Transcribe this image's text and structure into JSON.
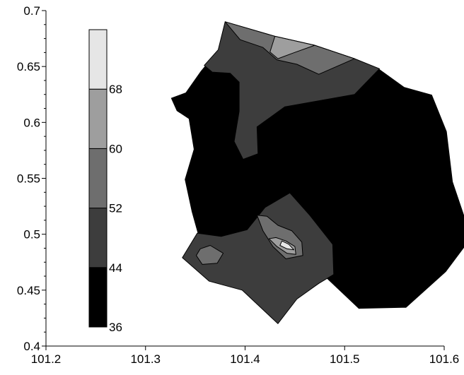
{
  "chart_data": {
    "type": "heatmap",
    "subtype": "filled-contour map",
    "title": "",
    "xlabel": "",
    "ylabel": "",
    "xlim": [
      101.2,
      101.6
    ],
    "ylim": [
      0.4,
      0.7
    ],
    "x_ticks": [
      "101.2",
      "101.3",
      "101.4",
      "101.5",
      "101.6"
    ],
    "y_ticks": [
      "0.4",
      "0.45",
      "0.5",
      "0.55",
      "0.6",
      "0.65",
      "0.7"
    ],
    "grid": false,
    "legend": {
      "placement": "left, inside plot",
      "type": "colorbar",
      "levels": [
        "36",
        "44",
        "52",
        "60",
        "68"
      ],
      "bands": [
        {
          "from": 36,
          "to": 44,
          "color": "#000000"
        },
        {
          "from": 44,
          "to": 52,
          "color": "#3d3d3d"
        },
        {
          "from": 52,
          "to": 60,
          "color": "#6e6e6e"
        },
        {
          "from": 60,
          "to": 68,
          "color": "#9e9e9e"
        },
        {
          "from": 68,
          "to": 76,
          "color": "#e6e6e6"
        }
      ]
    },
    "regions": [
      {
        "name": "main-outline",
        "band": 1,
        "outline": [
          [
            101.38,
            0.69
          ],
          [
            101.43,
            0.677
          ],
          [
            101.47,
            0.669
          ],
          [
            101.51,
            0.657
          ],
          [
            101.535,
            0.648
          ],
          [
            101.56,
            0.632
          ],
          [
            101.588,
            0.625
          ],
          [
            101.603,
            0.592
          ],
          [
            101.609,
            0.547
          ],
          [
            101.628,
            0.497
          ],
          [
            101.602,
            0.466
          ],
          [
            101.562,
            0.434
          ],
          [
            101.514,
            0.433
          ],
          [
            101.482,
            0.46
          ],
          [
            101.452,
            0.442
          ],
          [
            101.433,
            0.42
          ],
          [
            101.397,
            0.45
          ],
          [
            101.364,
            0.458
          ],
          [
            101.337,
            0.479
          ],
          [
            101.352,
            0.501
          ],
          [
            101.346,
            0.52
          ],
          [
            101.339,
            0.549
          ],
          [
            101.348,
            0.576
          ],
          [
            101.343,
            0.603
          ],
          [
            101.331,
            0.61
          ],
          [
            101.325,
            0.622
          ],
          [
            101.34,
            0.627
          ],
          [
            101.355,
            0.646
          ],
          [
            101.373,
            0.665
          ]
        ]
      },
      {
        "name": "north-band",
        "band": 2,
        "outline": [
          [
            101.38,
            0.69
          ],
          [
            101.43,
            0.677
          ],
          [
            101.47,
            0.669
          ],
          [
            101.51,
            0.657
          ],
          [
            101.535,
            0.648
          ],
          [
            101.51,
            0.625
          ],
          [
            101.44,
            0.614
          ],
          [
            101.412,
            0.596
          ],
          [
            101.413,
            0.572
          ],
          [
            101.398,
            0.567
          ],
          [
            101.389,
            0.583
          ],
          [
            101.394,
            0.61
          ],
          [
            101.394,
            0.636
          ],
          [
            101.385,
            0.644
          ],
          [
            101.367,
            0.645
          ],
          [
            101.359,
            0.651
          ],
          [
            101.373,
            0.665
          ]
        ]
      },
      {
        "name": "north-top",
        "band": 3,
        "outline": [
          [
            101.38,
            0.69
          ],
          [
            101.43,
            0.677
          ],
          [
            101.47,
            0.669
          ],
          [
            101.51,
            0.657
          ],
          [
            101.474,
            0.643
          ],
          [
            101.452,
            0.652
          ],
          [
            101.432,
            0.656
          ],
          [
            101.418,
            0.667
          ],
          [
            101.395,
            0.674
          ]
        ]
      },
      {
        "name": "north-peak",
        "band": 4,
        "outline": [
          [
            101.43,
            0.677
          ],
          [
            101.47,
            0.669
          ],
          [
            101.448,
            0.662
          ],
          [
            101.433,
            0.657
          ],
          [
            101.425,
            0.663
          ]
        ]
      },
      {
        "name": "south-band",
        "band": 2,
        "outline": [
          [
            101.337,
            0.479
          ],
          [
            101.352,
            0.501
          ],
          [
            101.376,
            0.498
          ],
          [
            101.402,
            0.504
          ],
          [
            101.42,
            0.524
          ],
          [
            101.445,
            0.537
          ],
          [
            101.465,
            0.517
          ],
          [
            101.488,
            0.491
          ],
          [
            101.489,
            0.464
          ],
          [
            101.474,
            0.456
          ],
          [
            101.452,
            0.442
          ],
          [
            101.433,
            0.42
          ],
          [
            101.397,
            0.45
          ],
          [
            101.364,
            0.458
          ]
        ]
      },
      {
        "name": "south-blob",
        "band": 3,
        "outline": [
          [
            101.422,
            0.516
          ],
          [
            101.433,
            0.508
          ],
          [
            101.447,
            0.503
          ],
          [
            101.457,
            0.493
          ],
          [
            101.458,
            0.481
          ],
          [
            101.441,
            0.478
          ],
          [
            101.428,
            0.489
          ],
          [
            101.418,
            0.503
          ],
          [
            101.412,
            0.517
          ]
        ]
      },
      {
        "name": "south-peak",
        "band": 4,
        "outline": [
          [
            101.431,
            0.497
          ],
          [
            101.441,
            0.494
          ],
          [
            101.45,
            0.489
          ],
          [
            101.451,
            0.482
          ],
          [
            101.442,
            0.483
          ],
          [
            101.432,
            0.489
          ],
          [
            101.424,
            0.496
          ]
        ]
      },
      {
        "name": "south-peak-core",
        "band": 5,
        "outline": [
          [
            101.437,
            0.494
          ],
          [
            101.444,
            0.491
          ],
          [
            101.449,
            0.486
          ],
          [
            101.442,
            0.487
          ],
          [
            101.435,
            0.49
          ]
        ]
      },
      {
        "name": "west-spot",
        "band": 3,
        "outline": [
          [
            101.355,
            0.487
          ],
          [
            101.365,
            0.49
          ],
          [
            101.378,
            0.483
          ],
          [
            101.372,
            0.474
          ],
          [
            101.357,
            0.473
          ],
          [
            101.351,
            0.481
          ]
        ]
      }
    ]
  }
}
